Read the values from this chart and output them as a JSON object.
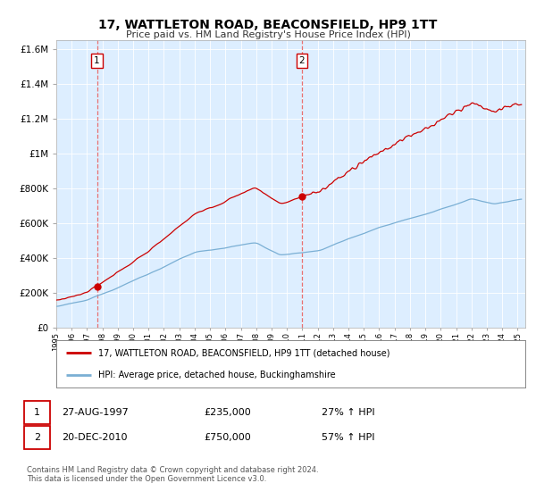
{
  "title": "17, WATTLETON ROAD, BEACONSFIELD, HP9 1TT",
  "subtitle": "Price paid vs. HM Land Registry's House Price Index (HPI)",
  "legend_line1": "17, WATTLETON ROAD, BEACONSFIELD, HP9 1TT (detached house)",
  "legend_line2": "HPI: Average price, detached house, Buckinghamshire",
  "sale1_label": "1",
  "sale1_date": "27-AUG-1997",
  "sale1_price": "£235,000",
  "sale1_hpi": "27% ↑ HPI",
  "sale2_label": "2",
  "sale2_date": "20-DEC-2010",
  "sale2_price": "£750,000",
  "sale2_hpi": "57% ↑ HPI",
  "footer": "Contains HM Land Registry data © Crown copyright and database right 2024.\nThis data is licensed under the Open Government Licence v3.0.",
  "red_color": "#cc0000",
  "blue_color": "#7aafd4",
  "dashed_color": "#e87070",
  "bg_color": "#ddeeff",
  "grid_color": "#c8d8e8",
  "sale1_year": 1997.65,
  "sale2_year": 2010.97,
  "ylim_max": 1650000,
  "ylim_min": 0,
  "sale1_price_val": 235000,
  "sale2_price_val": 750000
}
